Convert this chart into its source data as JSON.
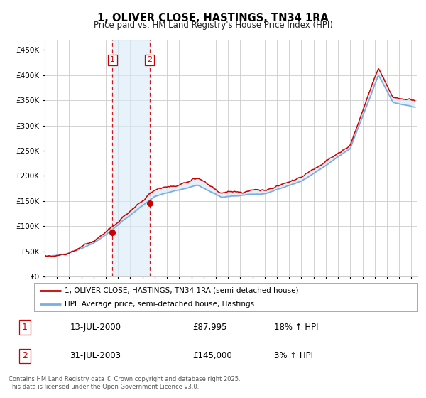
{
  "title": "1, OLIVER CLOSE, HASTINGS, TN34 1RA",
  "subtitle": "Price paid vs. HM Land Registry's House Price Index (HPI)",
  "yticks": [
    0,
    50000,
    100000,
    150000,
    200000,
    250000,
    300000,
    350000,
    400000,
    450000
  ],
  "ylim": [
    0,
    470000
  ],
  "xlim_start": 1995.0,
  "xlim_end": 2025.5,
  "transaction1_date": 2000.54,
  "transaction1_price": 87995,
  "transaction1_label": "1",
  "transaction2_date": 2003.58,
  "transaction2_price": 145000,
  "transaction2_label": "2",
  "legend_line1": "1, OLIVER CLOSE, HASTINGS, TN34 1RA (semi-detached house)",
  "legend_line2": "HPI: Average price, semi-detached house, Hastings",
  "table_row1": [
    "1",
    "13-JUL-2000",
    "£87,995",
    "18% ↑ HPI"
  ],
  "table_row2": [
    "2",
    "31-JUL-2003",
    "£145,000",
    "3% ↑ HPI"
  ],
  "footnote": "Contains HM Land Registry data © Crown copyright and database right 2025.\nThis data is licensed under the Open Government Licence v3.0.",
  "line_color_red": "#cc0000",
  "line_color_blue": "#7aade0",
  "shade_color": "#d8eaf7",
  "grid_color": "#cccccc",
  "vline_color": "#cc0000",
  "background_color": "#ffffff"
}
